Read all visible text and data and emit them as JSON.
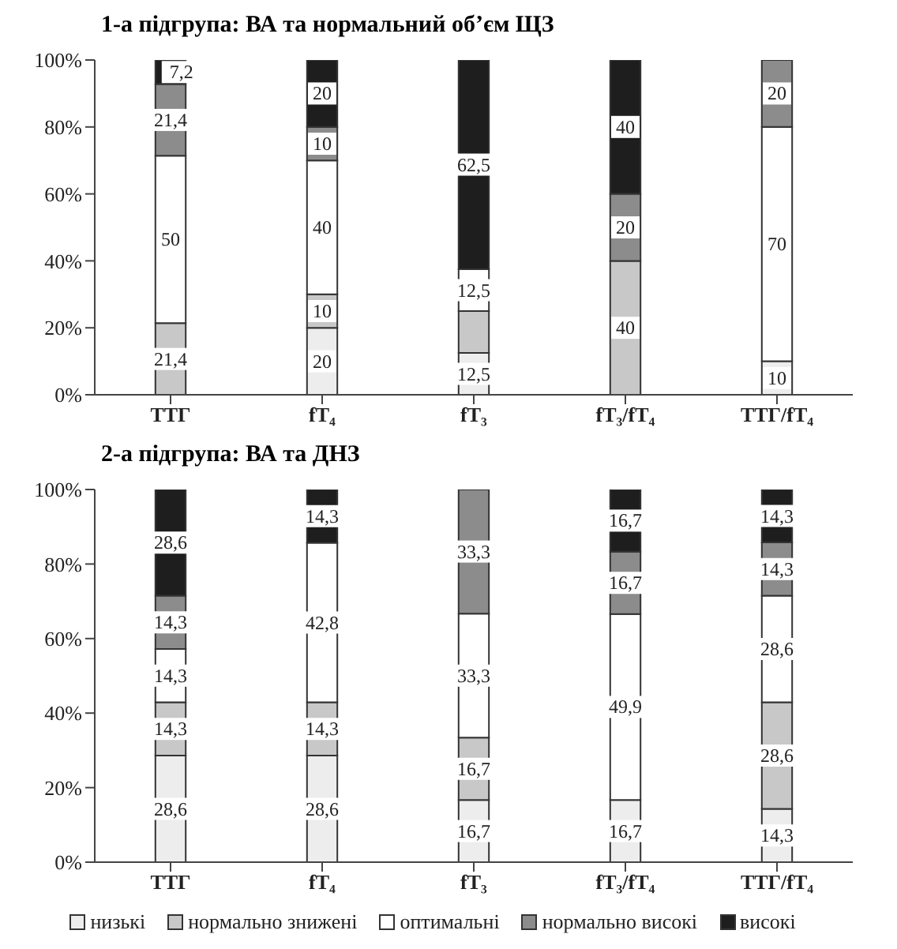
{
  "chart_data": [
    {
      "type": "bar",
      "title": "1-а підгрупа: ВА та нормальний об’єм ЩЗ",
      "stacked": true,
      "categories": [
        "ТТГ",
        "fT₄",
        "fT₃",
        "fT₃/fT₄",
        "ТТГ/fT₄"
      ],
      "ylim": [
        0,
        100
      ],
      "yticks": [
        {
          "value": 0,
          "label": "0%"
        },
        {
          "value": 20,
          "label": "20%"
        },
        {
          "value": 40,
          "label": "40%"
        },
        {
          "value": 60,
          "label": "60%"
        },
        {
          "value": 80,
          "label": "80%"
        },
        {
          "value": 100,
          "label": "100%"
        }
      ],
      "grid": false,
      "legend": false,
      "series": [
        {
          "color": "#ededed",
          "values": [
            null,
            20,
            12.5,
            null,
            10
          ],
          "value_labels": [
            null,
            "20",
            "12,5",
            null,
            "10"
          ]
        },
        {
          "color": "#c8c8c8",
          "values": [
            21.4,
            10,
            12.5,
            40,
            null
          ],
          "value_labels": [
            "21,4",
            "10",
            null,
            "40",
            null
          ]
        },
        {
          "color": "#ffffff",
          "values": [
            50,
            40,
            12.5,
            null,
            70
          ],
          "value_labels": [
            "50",
            "40",
            "12,5",
            null,
            "70"
          ]
        },
        {
          "color": "#8c8c8c",
          "values": [
            21.4,
            10,
            null,
            20,
            20
          ],
          "value_labels": [
            "21,4",
            "10",
            null,
            "20",
            "20"
          ]
        },
        {
          "color": "#1e1e1e",
          "values": [
            7.2,
            20,
            62.5,
            40,
            null
          ],
          "value_labels": [
            "7,2",
            "20",
            "62,5",
            "40",
            null
          ]
        }
      ]
    },
    {
      "type": "bar",
      "title": "2-а підгрупа: ВА та ДНЗ",
      "stacked": true,
      "categories": [
        "ТТГ",
        "fT₄",
        "fT₃",
        "fT₃/fT₄",
        "ТТГ/fT₄"
      ],
      "ylim": [
        0,
        100
      ],
      "yticks": [
        {
          "value": 0,
          "label": "0%"
        },
        {
          "value": 20,
          "label": "20%"
        },
        {
          "value": 40,
          "label": "40%"
        },
        {
          "value": 60,
          "label": "60%"
        },
        {
          "value": 80,
          "label": "80%"
        },
        {
          "value": 100,
          "label": "100%"
        }
      ],
      "grid": false,
      "legend": "bottom",
      "series": [
        {
          "name": "низькі",
          "color": "#ededed",
          "values": [
            28.6,
            28.6,
            16.7,
            16.7,
            14.3
          ],
          "value_labels": [
            "28,6",
            "28,6",
            "16,7",
            "16,7",
            "14,3"
          ]
        },
        {
          "name": "нормально знижені",
          "color": "#c8c8c8",
          "values": [
            14.3,
            14.3,
            16.7,
            null,
            28.6
          ],
          "value_labels": [
            "14,3",
            "14,3",
            "16,7",
            null,
            "28,6"
          ]
        },
        {
          "name": "оптимальні",
          "color": "#ffffff",
          "values": [
            14.3,
            42.8,
            33.3,
            49.9,
            28.6
          ],
          "value_labels": [
            "14,3",
            "42,8",
            "33,3",
            "49,9",
            "28,6"
          ]
        },
        {
          "name": "нормально високі",
          "color": "#8c8c8c",
          "values": [
            14.3,
            null,
            33.3,
            16.7,
            14.3
          ],
          "value_labels": [
            "14,3",
            null,
            "33,3",
            "16,7",
            "14,3"
          ]
        },
        {
          "name": "високі",
          "color": "#1e1e1e",
          "values": [
            28.6,
            14.3,
            null,
            16.7,
            14.3
          ],
          "value_labels": [
            "28,6",
            "14,3",
            null,
            "16,7",
            "14,3"
          ]
        }
      ]
    }
  ]
}
